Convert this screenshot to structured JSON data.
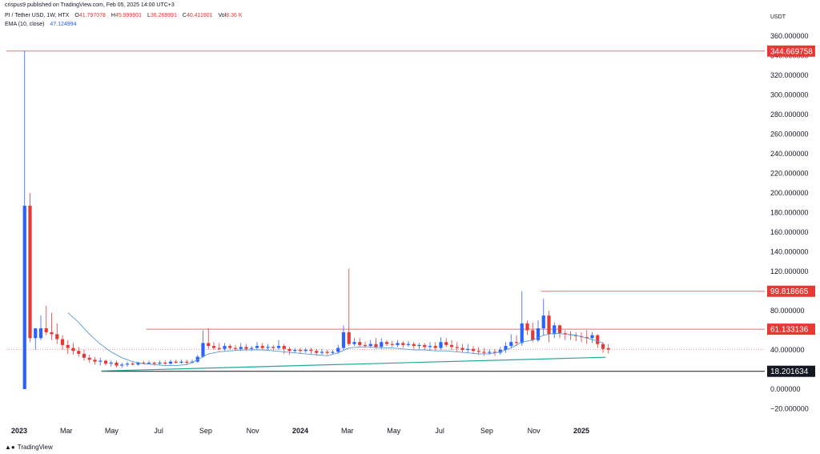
{
  "header": {
    "published": "crispus9 published on TradingView.com, Feb 05, 2025 14:00 UTC+3"
  },
  "legend": {
    "symbol": "PI / Tether USD, 1W, HTX",
    "o_label": "O",
    "o_value": "41.797078",
    "h_label": "H",
    "h_value": "45.999901",
    "l_label": "L",
    "l_value": "36.269991",
    "c_label": "C",
    "c_value": "40.411801",
    "vol_label": "Vol",
    "vol_value": "8.36 K",
    "ema_label": "EMA (10, close)",
    "ema_value": "47.124994"
  },
  "currency": "USDT",
  "footer": {
    "brand": "TradingView",
    "icon": "tradingview-logo-icon"
  },
  "colors": {
    "up": "#2962ff",
    "down": "#e53935",
    "ema": "#5b9bd5",
    "trendline": "#26a69a",
    "level": "#e57373",
    "support": "#131722"
  },
  "chart_data": {
    "type": "candlestick",
    "title": "PI / Tether USD, 1W, HTX",
    "ylabel": "USDT",
    "ylim": [
      -25,
      370
    ],
    "y_ticks": [
      -20,
      0,
      20,
      40,
      60,
      80,
      100,
      120,
      140,
      160,
      180,
      200,
      220,
      240,
      260,
      280,
      300,
      320,
      340,
      360
    ],
    "y_tick_labels": [
      "−20.000000",
      "0.000000",
      "20.000000",
      "40.000000",
      "60.000000",
      "80.000000",
      "100.000000",
      "120.000000",
      "140.000000",
      "160.000000",
      "180.000000",
      "200.000000",
      "220.000000",
      "240.000000",
      "260.000000",
      "280.000000",
      "300.000000",
      "320.000000",
      "340.000000",
      "360.000000"
    ],
    "x_ticks": [
      "2023",
      "Mar",
      "May",
      "Jul",
      "Sep",
      "Nov",
      "2024",
      "Mar",
      "May",
      "Jul",
      "Sep",
      "Nov",
      "2025"
    ],
    "x_tick_weeks": [
      0,
      8.7,
      17.1,
      25.8,
      34.5,
      43.2,
      52,
      60.7,
      69.3,
      77.8,
      86.5,
      95.2,
      104
    ],
    "price_levels": [
      {
        "value": 344.669758,
        "label": "344.669758",
        "style": "red"
      },
      {
        "value": 99.818665,
        "label": "99.818665",
        "style": "red"
      },
      {
        "value": 61.133136,
        "label": "61.133136",
        "style": "red"
      },
      {
        "value": 18.201634,
        "label": "18.201634",
        "style": "black"
      }
    ],
    "level_start_weeks": [
      0,
      96.5,
      23.5,
      15.2
    ],
    "trendline": {
      "from": [
        15.2,
        18.5
      ],
      "to": [
        108.5,
        32.5
      ]
    },
    "current_price": 40.411801,
    "ema": [
      [
        9,
        78
      ],
      [
        11,
        68
      ],
      [
        13,
        56
      ],
      [
        15,
        46
      ],
      [
        17,
        38
      ],
      [
        19,
        32
      ],
      [
        21,
        28
      ],
      [
        23,
        26
      ],
      [
        25,
        25
      ],
      [
        27,
        24
      ],
      [
        29,
        24
      ],
      [
        31,
        25
      ],
      [
        33,
        30
      ],
      [
        35,
        36
      ],
      [
        37,
        38
      ],
      [
        39,
        39
      ],
      [
        41,
        40
      ],
      [
        43,
        40
      ],
      [
        45,
        40
      ],
      [
        47,
        39
      ],
      [
        49,
        38
      ],
      [
        51,
        37
      ],
      [
        53,
        36
      ],
      [
        55,
        35
      ],
      [
        57,
        34
      ],
      [
        59,
        37
      ],
      [
        61,
        42
      ],
      [
        63,
        43
      ],
      [
        65,
        43
      ],
      [
        67,
        42
      ],
      [
        69,
        42
      ],
      [
        71,
        41
      ],
      [
        73,
        40
      ],
      [
        75,
        40
      ],
      [
        77,
        39
      ],
      [
        79,
        39
      ],
      [
        81,
        38
      ],
      [
        83,
        37
      ],
      [
        85,
        36
      ],
      [
        87,
        36
      ],
      [
        89,
        38
      ],
      [
        91,
        42
      ],
      [
        93,
        48
      ],
      [
        95,
        50
      ],
      [
        97,
        55
      ],
      [
        99,
        57
      ],
      [
        101,
        56
      ],
      [
        103,
        55
      ],
      [
        105,
        52
      ],
      [
        107,
        49
      ],
      [
        108,
        47
      ]
    ],
    "candles": [
      [
        1,
        0,
        187,
        345,
        0
      ],
      [
        2,
        187,
        52,
        200,
        48
      ],
      [
        3,
        52,
        62,
        62,
        40
      ],
      [
        4,
        52,
        62,
        75,
        50
      ],
      [
        5,
        62,
        58,
        85,
        55
      ],
      [
        6,
        58,
        56,
        78,
        50
      ],
      [
        7,
        56,
        51,
        67,
        46
      ],
      [
        8,
        51,
        45,
        55,
        40
      ],
      [
        9,
        45,
        42,
        50,
        36
      ],
      [
        10,
        42,
        39,
        47,
        35
      ],
      [
        11,
        39,
        36,
        43,
        33
      ],
      [
        12,
        36,
        32,
        40,
        29
      ],
      [
        13,
        32,
        30,
        35,
        27
      ],
      [
        14,
        30,
        28,
        33,
        25
      ],
      [
        15,
        28,
        29,
        32,
        24
      ],
      [
        16,
        29,
        26,
        30,
        24
      ],
      [
        17,
        26,
        27,
        29,
        23
      ],
      [
        18,
        27,
        24,
        29,
        22
      ],
      [
        19,
        24,
        25,
        27,
        22
      ],
      [
        20,
        25,
        26,
        28,
        23
      ],
      [
        21,
        26,
        25,
        28,
        24
      ],
      [
        22,
        25,
        27,
        28,
        24
      ],
      [
        23,
        27,
        26,
        29,
        25
      ],
      [
        24,
        26,
        27,
        29,
        25
      ],
      [
        25,
        27,
        26,
        28,
        24
      ],
      [
        26,
        26,
        27,
        29,
        25
      ],
      [
        27,
        27,
        26,
        29,
        25
      ],
      [
        28,
        26,
        28,
        30,
        25
      ],
      [
        29,
        28,
        27,
        30,
        26
      ],
      [
        30,
        27,
        28,
        30,
        26
      ],
      [
        31,
        28,
        27,
        30,
        25
      ],
      [
        32,
        27,
        28,
        30,
        26
      ],
      [
        33,
        28,
        33,
        35,
        27
      ],
      [
        34,
        33,
        47,
        60,
        32
      ],
      [
        35,
        47,
        44,
        62,
        41
      ],
      [
        36,
        44,
        42,
        48,
        40
      ],
      [
        37,
        42,
        41,
        47,
        39
      ],
      [
        38,
        41,
        44,
        47,
        39
      ],
      [
        39,
        44,
        42,
        46,
        40
      ],
      [
        40,
        42,
        41,
        45,
        39
      ],
      [
        41,
        41,
        43,
        47,
        39
      ],
      [
        42,
        43,
        41,
        46,
        39
      ],
      [
        43,
        41,
        42,
        44,
        39
      ],
      [
        44,
        42,
        44,
        48,
        40
      ],
      [
        45,
        44,
        42,
        47,
        40
      ],
      [
        46,
        42,
        43,
        46,
        40
      ],
      [
        47,
        43,
        42,
        45,
        39
      ],
      [
        48,
        42,
        44,
        50,
        40
      ],
      [
        49,
        44,
        41,
        46,
        36
      ],
      [
        50,
        41,
        39,
        43,
        35
      ],
      [
        51,
        39,
        40,
        42,
        37
      ],
      [
        52,
        40,
        39,
        42,
        36
      ],
      [
        53,
        39,
        40,
        42,
        37
      ],
      [
        54,
        40,
        39,
        42,
        36
      ],
      [
        55,
        39,
        37,
        41,
        34
      ],
      [
        56,
        37,
        38,
        41,
        35
      ],
      [
        57,
        38,
        37,
        40,
        35
      ],
      [
        58,
        37,
        38,
        40,
        35
      ],
      [
        59,
        38,
        42,
        45,
        36
      ],
      [
        60,
        42,
        58,
        65,
        40
      ],
      [
        61,
        58,
        46,
        123,
        44
      ],
      [
        62,
        46,
        48,
        52,
        44
      ],
      [
        63,
        48,
        45,
        52,
        43
      ],
      [
        64,
        45,
        44,
        48,
        42
      ],
      [
        65,
        44,
        46,
        50,
        42
      ],
      [
        66,
        46,
        43,
        52,
        41
      ],
      [
        67,
        43,
        48,
        52,
        41
      ],
      [
        68,
        48,
        46,
        50,
        44
      ],
      [
        69,
        46,
        45,
        49,
        43
      ],
      [
        70,
        45,
        47,
        50,
        43
      ],
      [
        71,
        47,
        45,
        49,
        42
      ],
      [
        72,
        45,
        46,
        49,
        43
      ],
      [
        73,
        46,
        44,
        48,
        41
      ],
      [
        74,
        44,
        45,
        47,
        41
      ],
      [
        75,
        45,
        43,
        47,
        40
      ],
      [
        76,
        43,
        44,
        48,
        39
      ],
      [
        77,
        44,
        42,
        48,
        39
      ],
      [
        78,
        42,
        48,
        53,
        40
      ],
      [
        79,
        48,
        45,
        52,
        43
      ],
      [
        80,
        45,
        43,
        50,
        40
      ],
      [
        81,
        43,
        42,
        48,
        38
      ],
      [
        82,
        42,
        40,
        46,
        37
      ],
      [
        83,
        40,
        41,
        46,
        37
      ],
      [
        84,
        41,
        39,
        44,
        36
      ],
      [
        85,
        39,
        38,
        43,
        35
      ],
      [
        86,
        38,
        37,
        42,
        34
      ],
      [
        87,
        37,
        38,
        41,
        35
      ],
      [
        88,
        38,
        37,
        41,
        34
      ],
      [
        89,
        37,
        40,
        43,
        35
      ],
      [
        90,
        40,
        44,
        48,
        37
      ],
      [
        91,
        44,
        48,
        56,
        42
      ],
      [
        92,
        48,
        47,
        55,
        44
      ],
      [
        93,
        47,
        67,
        100,
        44
      ],
      [
        94,
        67,
        60,
        70,
        55
      ],
      [
        95,
        60,
        50,
        68,
        48
      ],
      [
        96,
        50,
        62,
        70,
        48
      ],
      [
        97,
        62,
        75,
        92,
        55
      ],
      [
        98,
        75,
        56,
        80,
        48
      ],
      [
        99,
        56,
        65,
        68,
        52
      ],
      [
        100,
        65,
        57,
        66,
        52
      ],
      [
        101,
        57,
        56,
        60,
        50
      ],
      [
        102,
        56,
        55,
        59,
        50
      ],
      [
        103,
        55,
        54,
        58,
        49
      ],
      [
        104,
        54,
        53,
        58,
        48
      ],
      [
        105,
        53,
        52,
        60,
        46
      ],
      [
        106,
        52,
        55,
        58,
        47
      ],
      [
        107,
        55,
        46,
        56,
        42
      ],
      [
        108,
        46,
        41,
        48,
        37
      ],
      [
        109,
        41.8,
        40.4,
        46,
        36.3
      ]
    ]
  }
}
